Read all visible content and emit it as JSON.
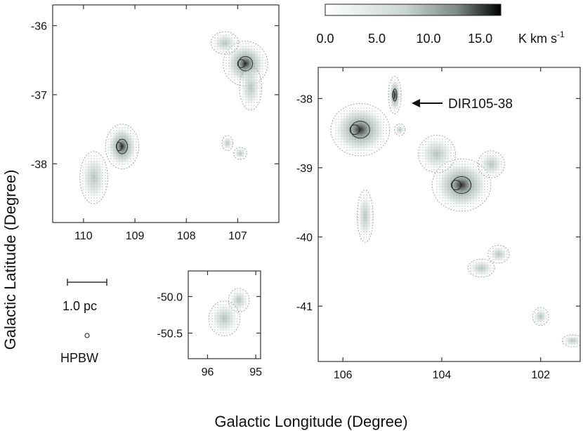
{
  "colors": {
    "axis": "#333333",
    "contour": "#999999",
    "cloud_fill": "#c9d6d4",
    "cloud_dark": "#2a2a2a",
    "colorbar_start": "#ffffff",
    "colorbar_end": "#000000"
  },
  "colorbar": {
    "ticks": [
      "0.0",
      "5.0",
      "10.0",
      "15.0"
    ],
    "tick_values": [
      0,
      5,
      10,
      15
    ],
    "range": [
      0,
      17
    ],
    "unit": "K km s",
    "unit_exponent": "-1"
  },
  "labels": {
    "xlabel": "Galactic Longitude (Degree)",
    "ylabel": "Galactic Latitude (Degree)",
    "annotation": "DIR105-38",
    "scale_bar": "1.0 pc",
    "beam": "HPBW"
  },
  "chart_data": [
    {
      "type": "heatmap",
      "panel": "top-left",
      "xlim": [
        110.6,
        106.2
      ],
      "ylim": [
        -38.85,
        -35.7
      ],
      "xticks": [
        "110",
        "109",
        "108",
        "107"
      ],
      "xtick_values": [
        110,
        109,
        108,
        107
      ],
      "yticks": [
        "-36",
        "-37",
        "-38"
      ],
      "ytick_values": [
        -36,
        -37,
        -38
      ],
      "clouds": [
        {
          "l": 106.85,
          "b": -36.55,
          "rl": 0.4,
          "rb": 0.3,
          "peak": 9
        },
        {
          "l": 106.75,
          "b": -36.9,
          "rl": 0.2,
          "rb": 0.3,
          "peak": 6
        },
        {
          "l": 107.25,
          "b": -36.25,
          "rl": 0.25,
          "rb": 0.15,
          "peak": 4
        },
        {
          "l": 109.25,
          "b": -37.75,
          "rl": 0.3,
          "rb": 0.3,
          "peak": 10
        },
        {
          "l": 109.8,
          "b": -38.2,
          "rl": 0.25,
          "rb": 0.35,
          "peak": 5
        },
        {
          "l": 107.2,
          "b": -37.7,
          "rl": 0.1,
          "rb": 0.1,
          "peak": 2
        },
        {
          "l": 106.95,
          "b": -37.85,
          "rl": 0.12,
          "rb": 0.08,
          "peak": 3
        }
      ]
    },
    {
      "type": "heatmap",
      "panel": "bottom-middle",
      "xlim": [
        96.4,
        94.9
      ],
      "ylim": [
        -50.85,
        -49.65
      ],
      "xticks": [
        "96",
        "95"
      ],
      "xtick_values": [
        96,
        95
      ],
      "yticks": [
        "-50.0",
        "-50.5"
      ],
      "ytick_values": [
        -50.0,
        -50.5
      ],
      "clouds": [
        {
          "l": 95.35,
          "b": -50.05,
          "rl": 0.2,
          "rb": 0.15,
          "peak": 6
        },
        {
          "l": 95.65,
          "b": -50.3,
          "rl": 0.3,
          "rb": 0.22,
          "peak": 3
        }
      ]
    },
    {
      "type": "heatmap",
      "panel": "right",
      "xlim": [
        106.5,
        101.2
      ],
      "ylim": [
        -41.8,
        -37.55
      ],
      "xticks": [
        "106",
        "104",
        "102"
      ],
      "xtick_values": [
        106,
        104,
        102
      ],
      "yticks": [
        "-38",
        "-39",
        "-40",
        "-41"
      ],
      "ytick_values": [
        -38,
        -39,
        -40,
        -41
      ],
      "clouds": [
        {
          "l": 105.65,
          "b": -38.45,
          "rl": 0.55,
          "rb": 0.35,
          "peak": 16
        },
        {
          "l": 104.95,
          "b": -37.95,
          "rl": 0.12,
          "rb": 0.25,
          "peak": 8
        },
        {
          "l": 103.6,
          "b": -39.25,
          "rl": 0.55,
          "rb": 0.35,
          "peak": 14
        },
        {
          "l": 104.1,
          "b": -38.8,
          "rl": 0.35,
          "rb": 0.25,
          "peak": 5
        },
        {
          "l": 103.0,
          "b": -38.95,
          "rl": 0.25,
          "rb": 0.18,
          "peak": 4
        },
        {
          "l": 105.55,
          "b": -39.7,
          "rl": 0.15,
          "rb": 0.35,
          "peak": 3
        },
        {
          "l": 102.85,
          "b": -40.25,
          "rl": 0.2,
          "rb": 0.12,
          "peak": 3
        },
        {
          "l": 103.2,
          "b": -40.45,
          "rl": 0.25,
          "rb": 0.12,
          "peak": 2
        },
        {
          "l": 102.0,
          "b": -41.15,
          "rl": 0.15,
          "rb": 0.12,
          "peak": 3
        },
        {
          "l": 101.35,
          "b": -41.5,
          "rl": 0.2,
          "rb": 0.08,
          "peak": 3
        },
        {
          "l": 104.85,
          "b": -38.45,
          "rl": 0.1,
          "rb": 0.08,
          "peak": 2
        }
      ]
    }
  ]
}
